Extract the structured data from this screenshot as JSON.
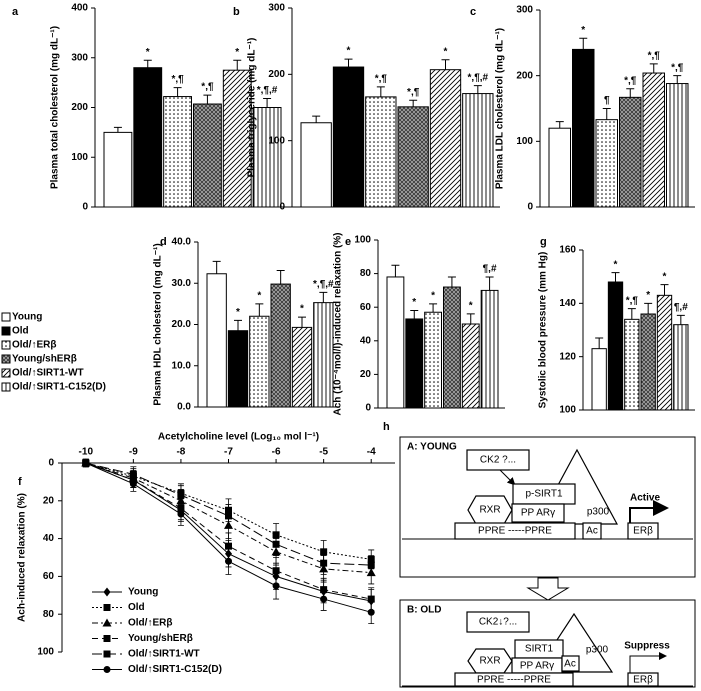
{
  "groups": {
    "names": [
      "Young",
      "Old",
      "Old/↑ERβ",
      "Young/shERβ",
      "Old/↑SIRT1-WT",
      "Old/↑SIRT1-C152(D)"
    ],
    "fills": [
      "white",
      "black",
      "dots",
      "cross",
      "diagonal",
      "vertical"
    ]
  },
  "chart_data": [
    {
      "type": "bar",
      "panel": "a",
      "y_label": "Plasma total cholesterol (mg dL⁻¹)",
      "values": [
        150,
        280,
        222,
        207,
        275,
        200
      ],
      "errors": [
        10,
        15,
        18,
        18,
        20,
        18
      ],
      "annotations": [
        null,
        "*",
        "*,¶",
        "*,¶",
        "*",
        "*,¶,#"
      ],
      "ylim": [
        0,
        400
      ],
      "yticks": [
        0,
        100,
        200,
        300,
        400
      ]
    },
    {
      "type": "bar",
      "panel": "b",
      "y_label": "Plasma triglyceride (mg dL⁻¹)",
      "values": [
        127,
        211,
        166,
        151,
        207,
        171
      ],
      "errors": [
        10,
        12,
        15,
        10,
        15,
        12
      ],
      "annotations": [
        null,
        "*",
        "*,¶",
        "*,¶",
        "*",
        "*,¶,#"
      ],
      "ylim": [
        0,
        300
      ],
      "yticks": [
        0,
        100,
        200,
        300
      ]
    },
    {
      "type": "bar",
      "panel": "c",
      "y_label": "Plasma LDL cholesterol (mg dL⁻¹)",
      "values": [
        120,
        240,
        133,
        167,
        204,
        188
      ],
      "errors": [
        10,
        17,
        17,
        13,
        14,
        12
      ],
      "annotations": [
        null,
        "*",
        "¶",
        "*,¶",
        "*,¶",
        "*,¶"
      ],
      "ylim": [
        0,
        300
      ],
      "yticks": [
        0,
        100,
        200,
        300
      ]
    },
    {
      "type": "bar",
      "panel": "d",
      "y_label": "Plasma HDL cholesterol (mg dL⁻¹)",
      "values": [
        32.3,
        18.5,
        22,
        29.8,
        19.3,
        25.3
      ],
      "errors": [
        3,
        2.5,
        3,
        3.3,
        2.5,
        2.5
      ],
      "annotations": [
        null,
        "*",
        "*",
        null,
        "*",
        "*,¶,#"
      ],
      "ylim": [
        0,
        40
      ],
      "yticks": [
        {
          "value": 0,
          "label": "0.0"
        },
        {
          "value": 10,
          "label": "10.0"
        },
        {
          "value": 20,
          "label": "20.0"
        },
        {
          "value": 30,
          "label": "30.0"
        },
        {
          "value": 40,
          "label": "40.0"
        }
      ]
    },
    {
      "type": "bar",
      "panel": "e",
      "y_label": "Ach (10⁻⁴mol/l)-induced relaxation (%)",
      "values": [
        78,
        53,
        57,
        72,
        50,
        70
      ],
      "errors": [
        7,
        5,
        5,
        6,
        6,
        8
      ],
      "annotations": [
        null,
        "*",
        "*",
        null,
        "*",
        "¶,#"
      ],
      "ylim": [
        0,
        100
      ],
      "yticks": [
        0,
        20,
        40,
        60,
        80,
        100
      ]
    },
    {
      "type": "bar",
      "panel": "g",
      "y_label": "Systolic blood pressure (mm Hg)",
      "values": [
        123,
        148,
        134,
        136,
        143,
        132
      ],
      "errors": [
        4,
        3.5,
        4,
        4,
        4,
        3.5
      ],
      "annotations": [
        null,
        "*",
        "*,¶",
        "*",
        "*",
        "¶,#"
      ],
      "ylim": [
        100,
        160
      ],
      "yticks": [
        100,
        120,
        140,
        160
      ]
    },
    {
      "type": "line",
      "panel": "f",
      "x_label": "Acetylcholine level (Log₁₀ mol l⁻¹)",
      "y_label": "Ach-induced relaxation (%)",
      "x": [
        -10,
        -9,
        -8,
        -7,
        -6,
        -5,
        -4
      ],
      "xlim": [
        -10.5,
        -3.5
      ],
      "xticks": [
        -10,
        -9,
        -8,
        -7,
        -6,
        -5,
        -4
      ],
      "ylim": [
        0,
        100
      ],
      "yticks": [
        0,
        20,
        40,
        60,
        80,
        100
      ],
      "y_inverted": true,
      "series": [
        {
          "name": "Young",
          "marker": "diamond",
          "dash": "solid",
          "values": [
            0,
            9,
            25,
            48,
            60,
            68,
            73
          ],
          "errors": [
            2,
            4,
            6,
            7,
            7,
            6,
            6
          ]
        },
        {
          "name": "Old",
          "marker": "square",
          "dash": "dotted",
          "values": [
            0,
            7,
            16,
            25,
            38,
            47,
            51
          ],
          "errors": [
            2,
            4,
            5,
            6,
            6,
            6,
            5
          ]
        },
        {
          "name": "Old/↑ERβ",
          "marker": "triangle",
          "dash": "dashdot",
          "values": [
            0,
            8,
            20,
            33,
            47,
            56,
            58
          ],
          "errors": [
            2,
            4,
            6,
            7,
            7,
            7,
            6
          ]
        },
        {
          "name": "Young/shERβ",
          "marker": "square",
          "dash": "dashed",
          "values": [
            0,
            9,
            24,
            44,
            57,
            67,
            72
          ],
          "errors": [
            2,
            4,
            6,
            7,
            7,
            6,
            6
          ]
        },
        {
          "name": "Old/↑SIRT1-WT",
          "marker": "square",
          "dash": "longdash",
          "values": [
            0,
            6,
            17,
            28,
            43,
            53,
            54
          ],
          "errors": [
            2,
            4,
            5,
            6,
            6,
            6,
            5
          ]
        },
        {
          "name": "Old/↑SIRT1-C152(D)",
          "marker": "circle",
          "dash": "solid",
          "values": [
            0,
            11,
            27,
            52,
            65,
            72,
            79
          ],
          "errors": [
            2,
            4,
            6,
            7,
            7,
            6,
            6
          ]
        }
      ]
    }
  ],
  "diagram": {
    "panel": "h",
    "young": {
      "title": "A: YOUNG",
      "ck2": "CK2 ?...",
      "sirt1": "p-SIRT1",
      "rxr": "RXR",
      "ppar": "PP ARγ",
      "p300": "p300",
      "ppre": "PPRE -----PPRE",
      "ac": "Ac",
      "state": "Active",
      "gene": "ERβ"
    },
    "old": {
      "title": "B: OLD",
      "ck2": "CK2↓?...",
      "sirt1": "SIRT1",
      "rxr": "RXR",
      "ppar": "PP ARγ",
      "p300": "p300",
      "ppre": "PPRE -----PPRE",
      "ac": "Ac",
      "state": "Suppress",
      "gene": "ERβ"
    }
  }
}
